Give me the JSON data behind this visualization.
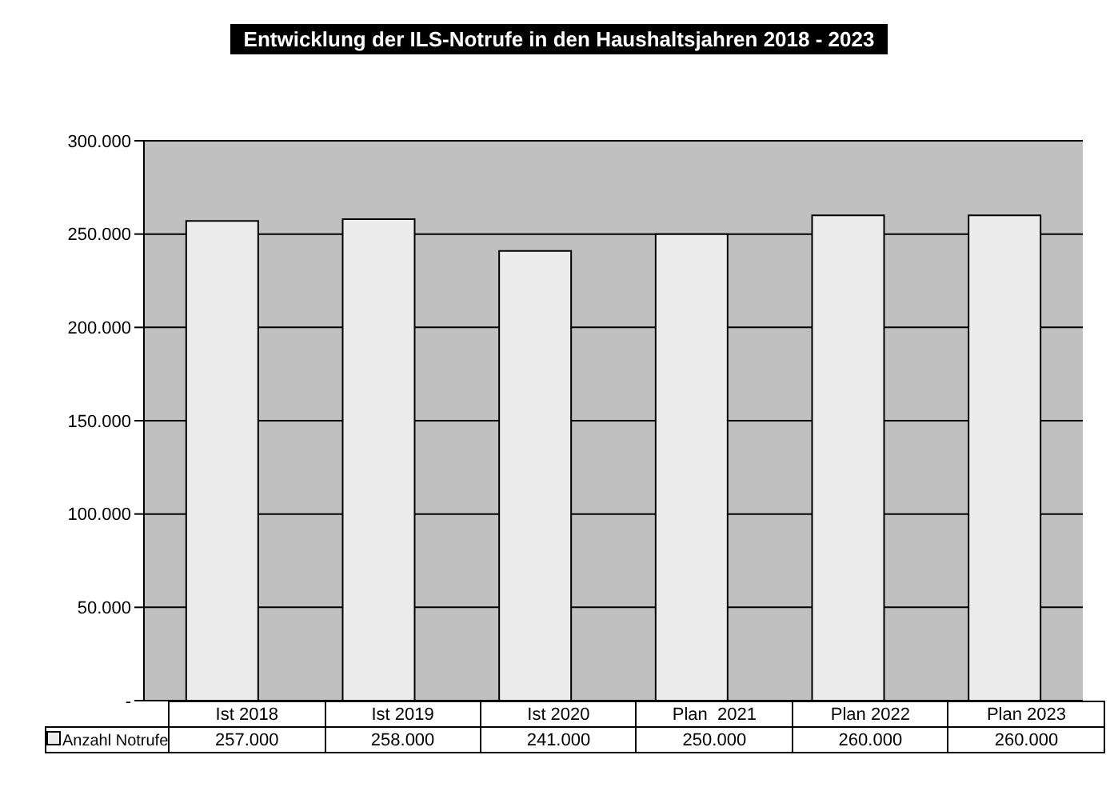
{
  "chart_data": {
    "type": "bar",
    "title": "Entwicklung der ILS-Notrufe in den Haushaltsjahren 2018 - 2023",
    "categories": [
      "Ist 2018",
      "Ist 2019",
      "Ist 2020",
      "Plan  2021",
      "Plan 2022",
      "Plan 2023"
    ],
    "series": [
      {
        "name": "Anzahl Notrufe",
        "color": "#ececec",
        "values": [
          257000,
          258000,
          241000,
          250000,
          260000,
          260000
        ],
        "value_labels": [
          "257.000",
          "258.000",
          "241.000",
          "250.000",
          "260.000",
          "260.000"
        ]
      }
    ],
    "ylim": [
      0,
      300000
    ],
    "yticks": [
      {
        "value": 0,
        "label": "-"
      },
      {
        "value": 50000,
        "label": "50.000"
      },
      {
        "value": 100000,
        "label": "100.000"
      },
      {
        "value": 150000,
        "label": "150.000"
      },
      {
        "value": 200000,
        "label": "200.000"
      },
      {
        "value": 250000,
        "label": "250.000"
      },
      {
        "value": 300000,
        "label": "300.000"
      }
    ],
    "grid": "y",
    "legend": "bottom"
  }
}
